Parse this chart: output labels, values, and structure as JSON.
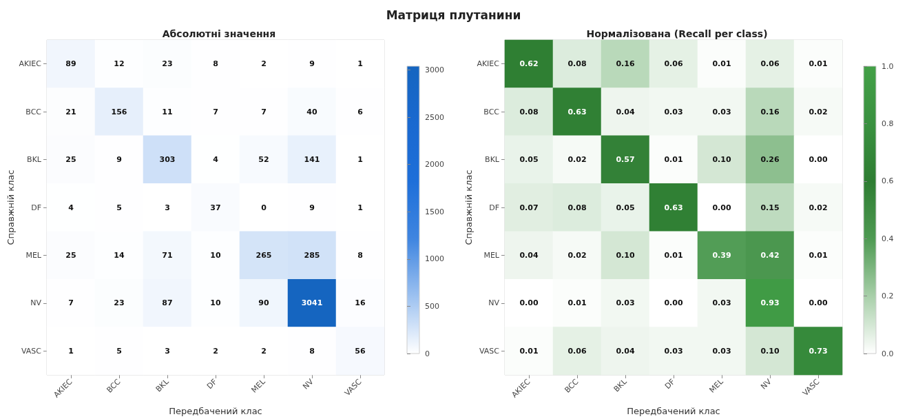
{
  "chart_data": [
    {
      "type": "heatmap",
      "title": "Матриця плутанини",
      "subtitle": "Абсолютні значення",
      "xlabel": "Передбачений клас",
      "ylabel": "Справжній клас",
      "categories": [
        "AKIEC",
        "BCC",
        "BKL",
        "DF",
        "MEL",
        "NV",
        "VASC"
      ],
      "y_categories": [
        "AKIEC",
        "BCC",
        "BKL",
        "DF",
        "MEL",
        "NV",
        "VASC"
      ],
      "cells": [
        [
          89,
          12,
          23,
          8,
          2,
          9,
          1
        ],
        [
          21,
          156,
          11,
          7,
          7,
          40,
          6
        ],
        [
          25,
          9,
          303,
          4,
          52,
          141,
          1
        ],
        [
          4,
          5,
          3,
          37,
          0,
          9,
          1
        ],
        [
          25,
          14,
          71,
          10,
          265,
          285,
          8
        ],
        [
          7,
          23,
          87,
          10,
          90,
          3041,
          16
        ],
        [
          1,
          5,
          3,
          2,
          2,
          8,
          56
        ]
      ],
      "data_labels": true,
      "clim": [
        0,
        3041
      ],
      "cticks": [
        0,
        500,
        1000,
        1500,
        2000,
        2500,
        3000
      ]
    },
    {
      "type": "heatmap",
      "subtitle": "Нормалізована (Recall per class)",
      "xlabel": "Передбачений клас",
      "ylabel": "Справжній клас",
      "categories": [
        "AKIEC",
        "BCC",
        "BKL",
        "DF",
        "MEL",
        "NV",
        "VASC"
      ],
      "y_categories": [
        "AKIEC",
        "BCC",
        "BKL",
        "DF",
        "MEL",
        "NV",
        "VASC"
      ],
      "cells": [
        [
          0.62,
          0.08,
          0.16,
          0.06,
          0.01,
          0.06,
          0.01
        ],
        [
          0.08,
          0.63,
          0.04,
          0.03,
          0.03,
          0.16,
          0.02
        ],
        [
          0.05,
          0.02,
          0.57,
          0.01,
          0.1,
          0.26,
          0
        ],
        [
          0.07,
          0.08,
          0.05,
          0.63,
          0,
          0.15,
          0.02
        ],
        [
          0.04,
          0.02,
          0.1,
          0.01,
          0.39,
          0.42,
          0.01
        ],
        [
          0,
          0.01,
          0.03,
          0,
          0.03,
          0.93,
          0
        ],
        [
          0.01,
          0.06,
          0.04,
          0.03,
          0.03,
          0.1,
          0.73
        ]
      ],
      "cell_labels": [
        [
          "0.62",
          "0.08",
          "0.16",
          "0.06",
          "0.01",
          "0.06",
          "0.01"
        ],
        [
          "0.08",
          "0.63",
          "0.04",
          "0.03",
          "0.03",
          "0.16",
          "0.02"
        ],
        [
          "0.05",
          "0.02",
          "0.57",
          "0.01",
          "0.10",
          "0.26",
          "0.00"
        ],
        [
          "0.07",
          "0.08",
          "0.05",
          "0.63",
          "0.00",
          "0.15",
          "0.02"
        ],
        [
          "0.04",
          "0.02",
          "0.10",
          "0.01",
          "0.39",
          "0.42",
          "0.01"
        ],
        [
          "0.00",
          "0.01",
          "0.03",
          "0.00",
          "0.03",
          "0.93",
          "0.00"
        ],
        [
          "0.01",
          "0.06",
          "0.04",
          "0.03",
          "0.03",
          "0.10",
          "0.73"
        ]
      ],
      "clim": [
        0,
        1
      ],
      "cticks": [
        {
          "value": 0,
          "label": "0.0"
        },
        {
          "value": 0.2,
          "label": "0.2"
        },
        {
          "value": 0.4,
          "label": "0.4"
        },
        {
          "value": 0.6,
          "label": "0.6"
        },
        {
          "value": 0.8,
          "label": "0.8"
        },
        {
          "value": 1,
          "label": "1.0"
        }
      ]
    }
  ]
}
